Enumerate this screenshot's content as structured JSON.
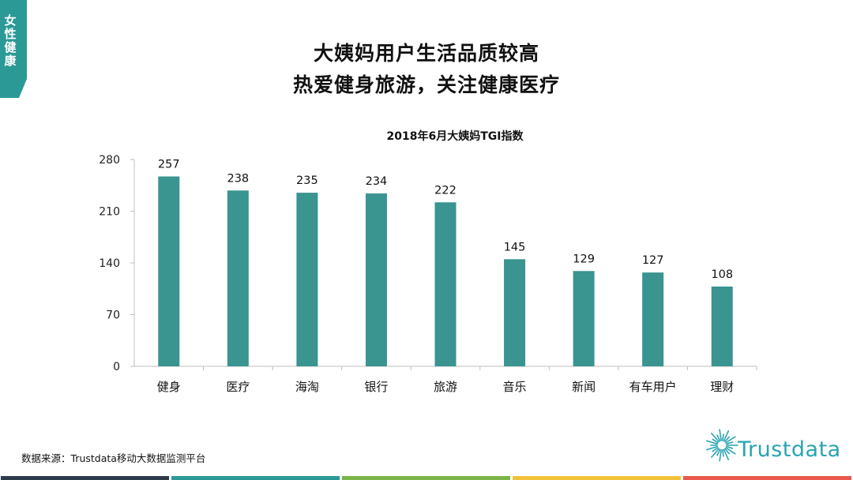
{
  "side_tag": {
    "label": "女性健康",
    "color": "#2b9a96"
  },
  "headline": {
    "line1": "大姨妈用户生活品质较高",
    "line2": "热爱健身旅游，关注健康医疗"
  },
  "chart_data": {
    "type": "bar",
    "title": "2018年6月大姨妈TGI指数",
    "categories": [
      "健身",
      "医疗",
      "海淘",
      "银行",
      "旅游",
      "音乐",
      "新闻",
      "有车用户",
      "理财"
    ],
    "values": [
      257,
      238,
      235,
      234,
      222,
      145,
      129,
      127,
      108
    ],
    "ylim": [
      0,
      280
    ],
    "yticks": [
      0,
      70,
      140,
      210,
      280
    ],
    "bar_color": "#3a9490",
    "data_labels": true,
    "grid": false,
    "legend": "none",
    "xlabel": "",
    "ylabel": ""
  },
  "source": "数据来源：Trustdata移动大数据监测平台",
  "logo": {
    "text": "Trustdata",
    "icon": "starburst-icon",
    "color": "#2aa3b3"
  },
  "footer_colors": [
    "#2e3b4a",
    "#2b9a96",
    "#7ab648",
    "#f2c23a",
    "#e8584d"
  ]
}
